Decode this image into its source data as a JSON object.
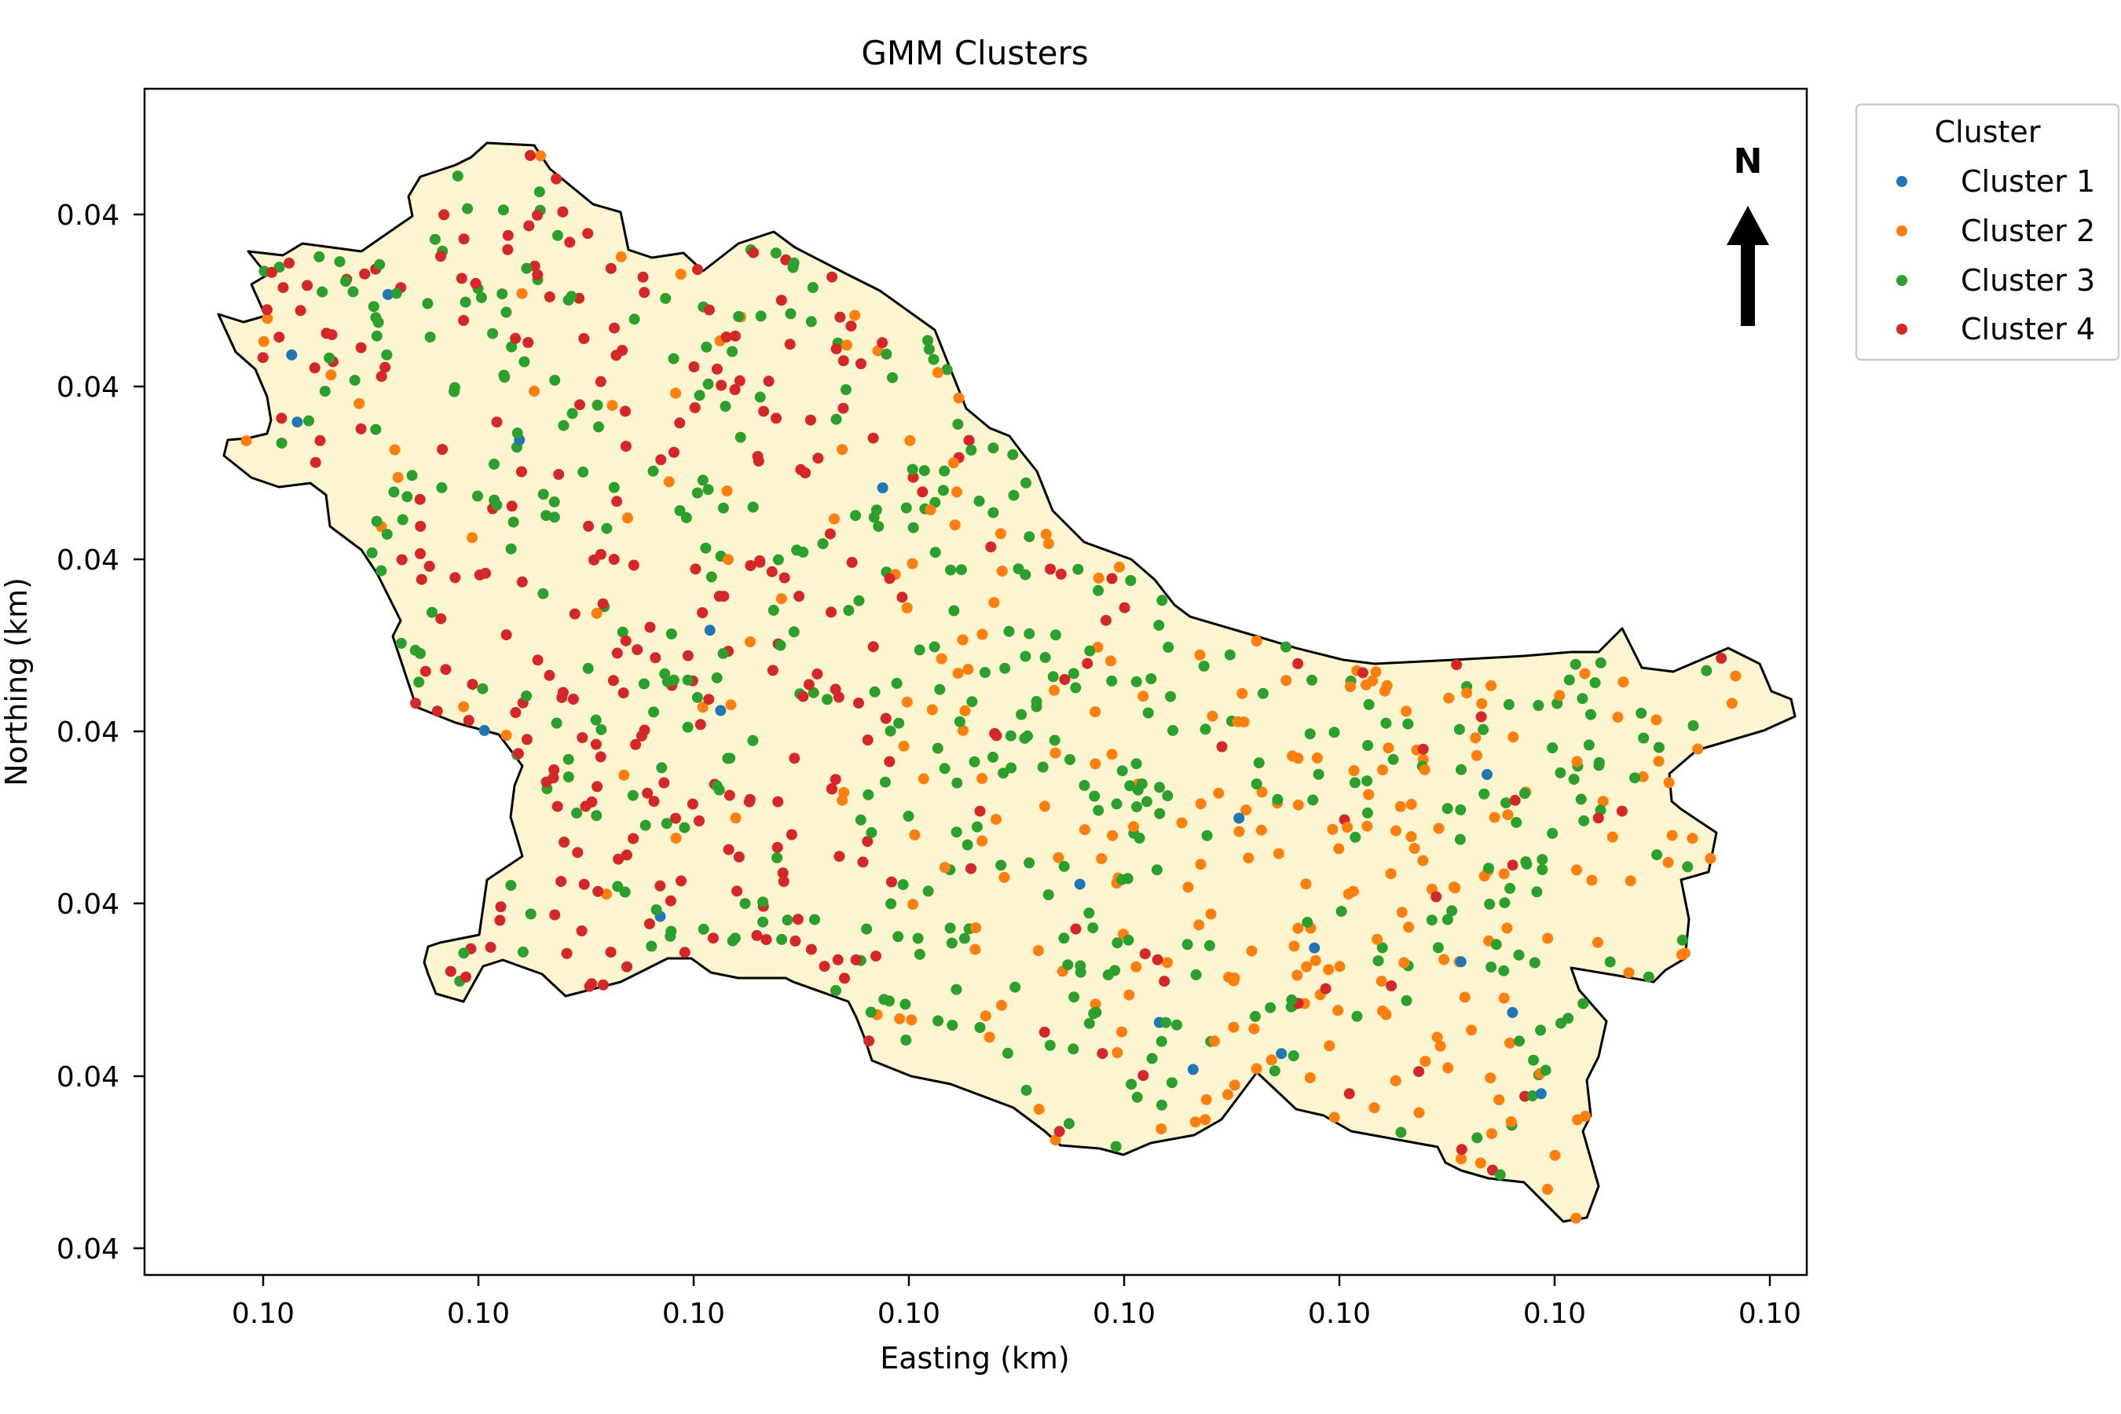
{
  "chart_data": {
    "type": "scatter",
    "title": "GMM Clusters",
    "xlabel": "Easting (km)",
    "ylabel": "Northing (km)",
    "x_tick_labels": [
      "0.10",
      "0.10",
      "0.10",
      "0.10",
      "0.10",
      "0.10",
      "0.10",
      "0.10"
    ],
    "y_tick_labels": [
      "0.04",
      "0.04",
      "0.04",
      "0.04",
      "0.04",
      "0.04"
    ],
    "legend": {
      "title": "Cluster",
      "placement": "outside-right-top",
      "entries": [
        "Cluster 1",
        "Cluster 2",
        "Cluster 3",
        "Cluster 4"
      ]
    },
    "north_arrow_label": "N",
    "region_fill": "#fdf4d0",
    "series": [
      {
        "name": "Cluster 1",
        "color": "#1f77b4"
      },
      {
        "name": "Cluster 2",
        "color": "#ff7f0e"
      },
      {
        "name": "Cluster 3",
        "color": "#2ca02c"
      },
      {
        "name": "Cluster 4",
        "color": "#d62728"
      }
    ]
  }
}
